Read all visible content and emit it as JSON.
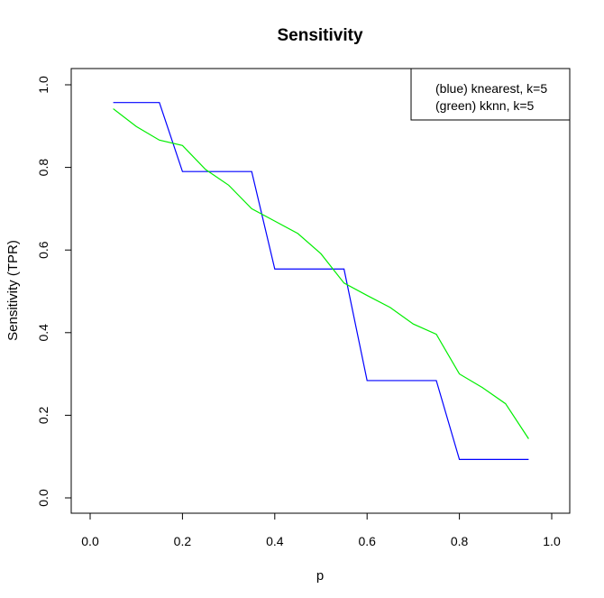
{
  "chart_data": {
    "type": "line",
    "title": "Sensitivity",
    "xlabel": "p",
    "ylabel": "Sensitivity (TPR)",
    "xlim": [
      0.0,
      1.0
    ],
    "ylim": [
      0.0,
      1.0
    ],
    "x_ticks": [
      "0.0",
      "0.2",
      "0.4",
      "0.6",
      "0.8",
      "1.0"
    ],
    "y_ticks": [
      "0.0",
      "0.2",
      "0.4",
      "0.6",
      "0.8",
      "1.0"
    ],
    "grid": false,
    "legend": {
      "placement": "top-right",
      "entries": [
        "(blue) knearest, k=5",
        "(green) kknn, k=5"
      ]
    },
    "series": [
      {
        "color": "#0000ff",
        "x": [
          0.05,
          0.15,
          0.2,
          0.25,
          0.3,
          0.35,
          0.4,
          0.45,
          0.5,
          0.55,
          0.6,
          0.65,
          0.7,
          0.75,
          0.8,
          0.85,
          0.9,
          0.95
        ],
        "y": [
          0.957,
          0.957,
          0.79,
          0.79,
          0.79,
          0.79,
          0.554,
          0.554,
          0.554,
          0.554,
          0.284,
          0.284,
          0.284,
          0.284,
          0.093,
          0.093,
          0.093,
          0.093
        ]
      },
      {
        "color": "#00ee00",
        "x": [
          0.05,
          0.1,
          0.15,
          0.2,
          0.25,
          0.3,
          0.35,
          0.4,
          0.45,
          0.5,
          0.55,
          0.6,
          0.65,
          0.7,
          0.75,
          0.8,
          0.85,
          0.9,
          0.95
        ],
        "y": [
          0.942,
          0.899,
          0.866,
          0.853,
          0.795,
          0.757,
          0.7,
          0.67,
          0.64,
          0.591,
          0.52,
          0.49,
          0.461,
          0.421,
          0.396,
          0.3,
          0.267,
          0.228,
          0.143
        ]
      }
    ]
  }
}
